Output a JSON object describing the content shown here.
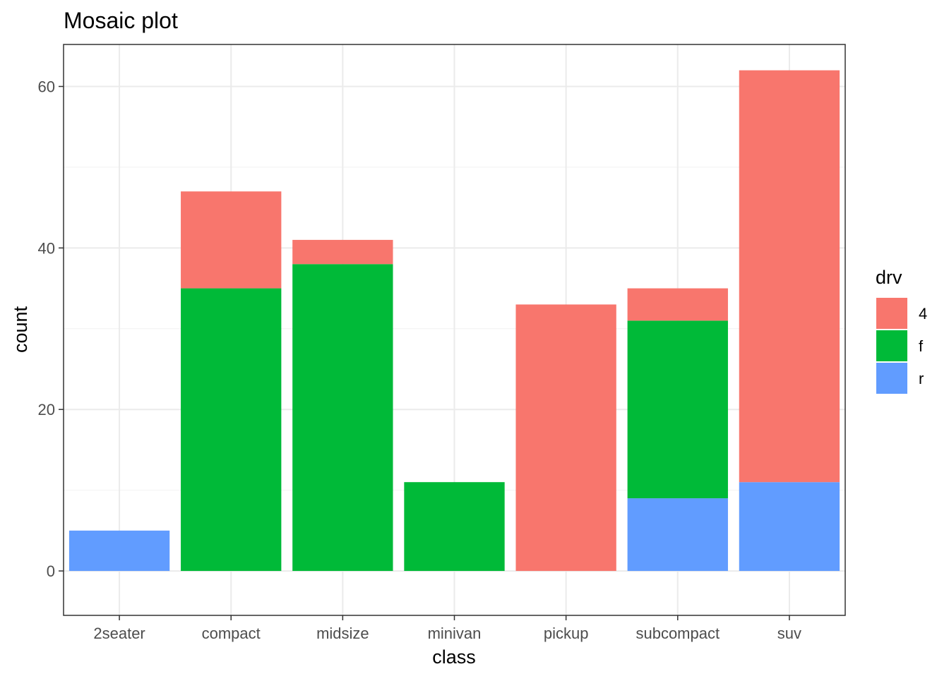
{
  "chart_data": {
    "type": "bar",
    "stacked": true,
    "title": "Mosaic plot",
    "xlabel": "class",
    "ylabel": "count",
    "categories": [
      "2seater",
      "compact",
      "midsize",
      "minivan",
      "pickup",
      "subcompact",
      "suv"
    ],
    "series": [
      {
        "name": "4",
        "color": "#F8766D",
        "values": [
          0,
          12,
          3,
          0,
          33,
          4,
          51
        ]
      },
      {
        "name": "f",
        "color": "#00BA38",
        "values": [
          0,
          35,
          38,
          11,
          0,
          22,
          0
        ]
      },
      {
        "name": "r",
        "color": "#619CFF",
        "values": [
          5,
          0,
          0,
          0,
          0,
          9,
          11
        ]
      }
    ],
    "stack_order_bottom_to_top": [
      "r",
      "f",
      "4"
    ],
    "ylim": [
      -5.5,
      65.2
    ],
    "yticks": [
      0,
      20,
      40,
      60
    ],
    "yminor": [
      10,
      30,
      50
    ],
    "legend": {
      "title": "drv",
      "position": "right",
      "entries": [
        "4",
        "f",
        "r"
      ]
    },
    "grid": true
  }
}
